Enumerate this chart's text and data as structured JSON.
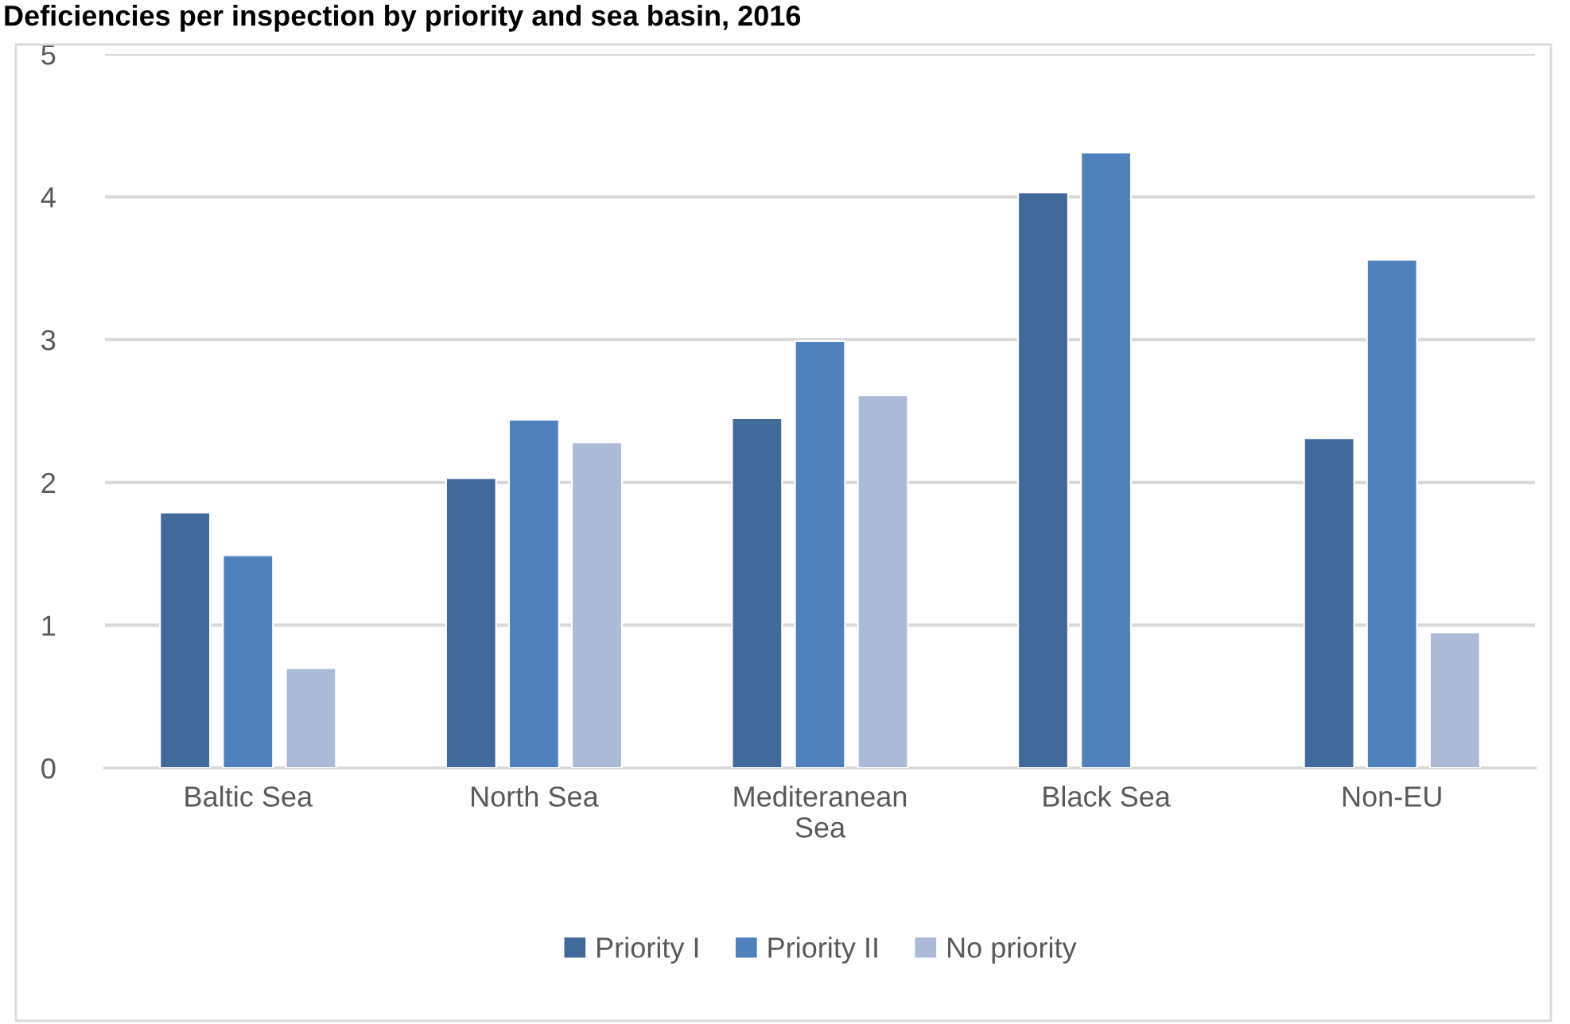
{
  "chart_data": {
    "type": "bar",
    "title": "Deficiencies per inspection by priority and sea basin, 2016",
    "categories": [
      "Baltic Sea",
      "North Sea",
      "Mediteranean Sea",
      "Black Sea",
      "Non-EU"
    ],
    "series": [
      {
        "name": "Priority I",
        "color": "#41699b",
        "values": [
          1.79,
          2.03,
          2.45,
          4.03,
          2.31
        ]
      },
      {
        "name": "Priority II",
        "color": "#4f81bd",
        "values": [
          1.49,
          2.44,
          2.99,
          4.31,
          3.56
        ]
      },
      {
        "name": "No priority",
        "color": "#abbad7",
        "values": [
          0.7,
          2.28,
          2.61,
          null,
          0.95
        ]
      }
    ],
    "ylim": [
      0,
      5
    ],
    "yticks": [
      0,
      1,
      2,
      3,
      4,
      5
    ],
    "grid": "y",
    "legend": "bottom"
  }
}
